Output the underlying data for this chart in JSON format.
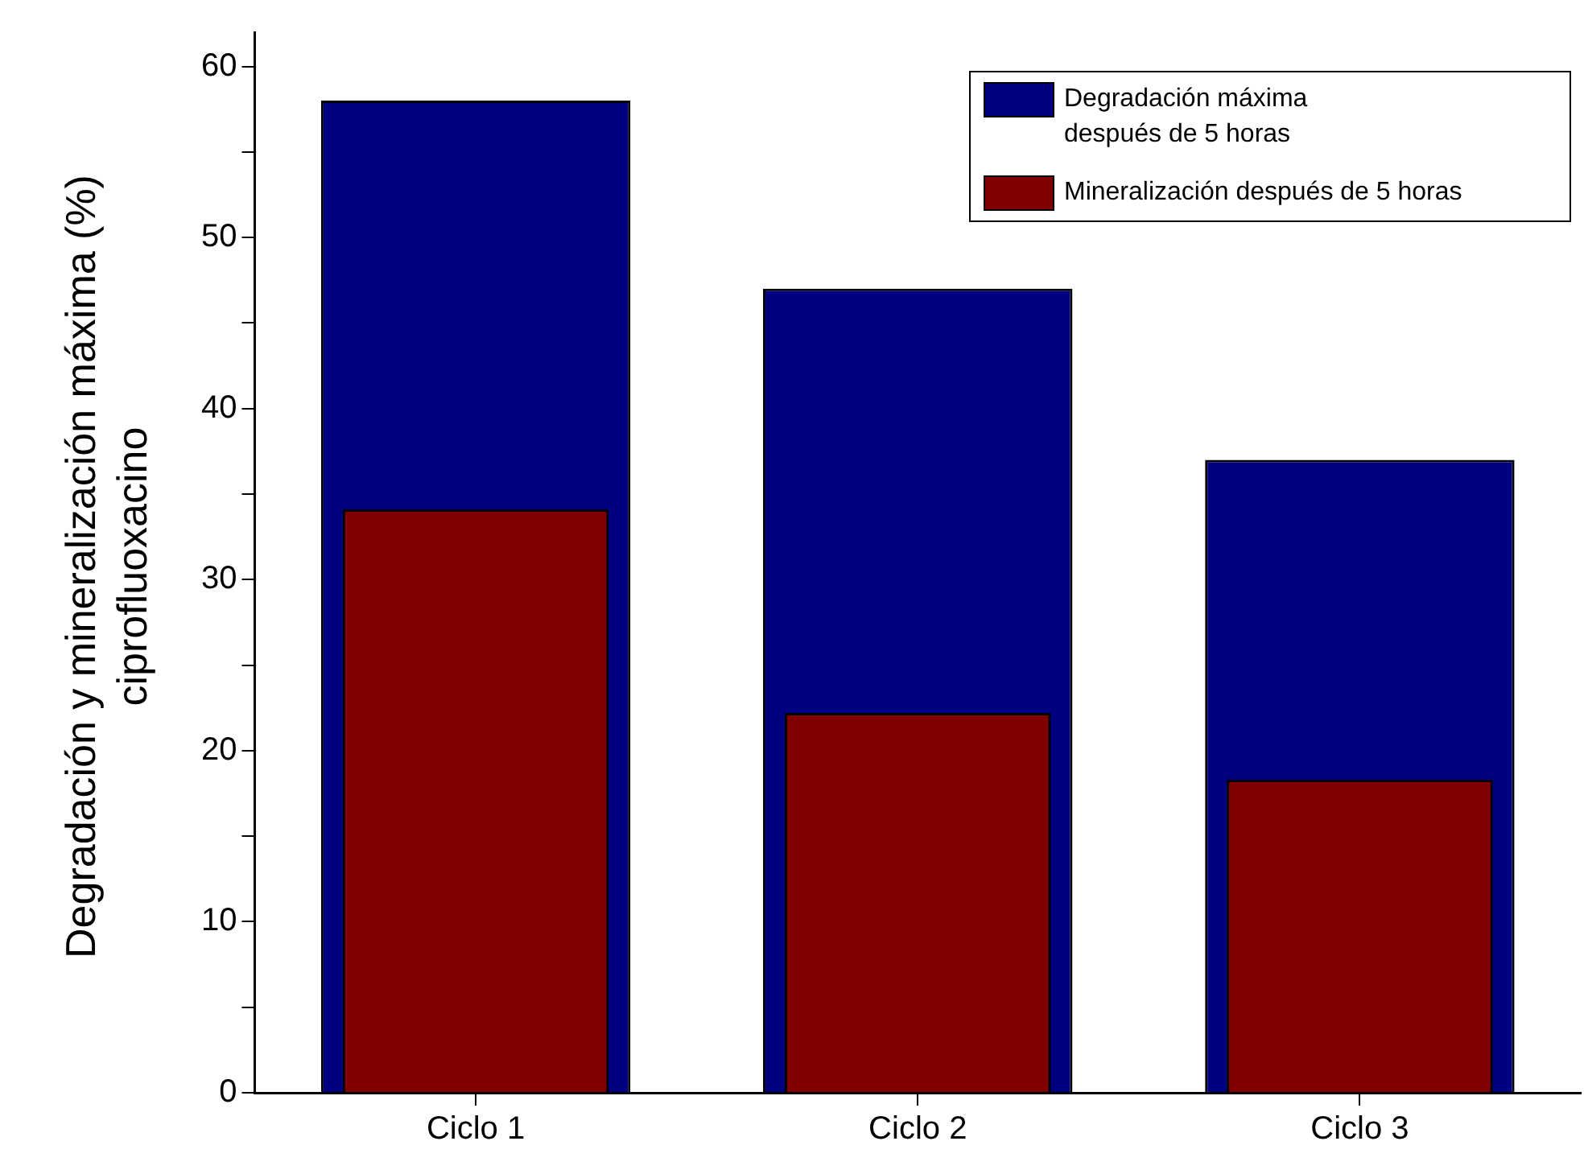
{
  "chart_data": {
    "type": "bar",
    "ylabel": "Degradación y mineralización máxima (%) ciprofluoxacino",
    "categories": [
      "Ciclo 1",
      "Ciclo 2",
      "Ciclo 3"
    ],
    "series": [
      {
        "name": "Degradación máxima después de 5 horas",
        "color": "#000080",
        "values": [
          58,
          47,
          37
        ]
      },
      {
        "name": "Mineralización después de 5 horas",
        "color": "#800000",
        "values": [
          34.1,
          22.2,
          18.3
        ]
      }
    ],
    "ylim": [
      0,
      62
    ],
    "yticks": [
      0,
      {
        "value": 5,
        "label": null
      },
      10,
      {
        "value": 15,
        "label": null
      },
      20,
      {
        "value": 25,
        "label": null
      },
      30,
      {
        "value": 35,
        "label": null
      },
      40,
      {
        "value": 45,
        "label": null
      },
      50,
      {
        "value": 55,
        "label": null
      },
      60
    ],
    "grid": false,
    "legend": "top right"
  }
}
